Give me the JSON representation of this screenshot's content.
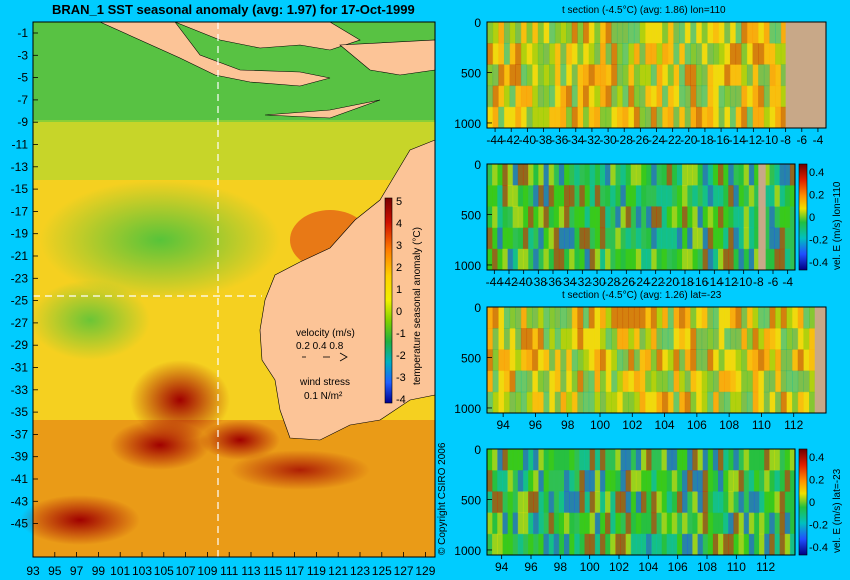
{
  "main_title": "BRAN_1  SST seasonal anomaly (avg: 1.97) for 17-Oct-1999",
  "copyright": "© Copyright CSIRO 2006",
  "colors": {
    "background": "#00ccff",
    "land": "#fcc497",
    "land_section": "#c8a888"
  },
  "map": {
    "lat_ticks": [
      "-1",
      "-3",
      "-5",
      "-7",
      "-9",
      "-11",
      "-13",
      "-15",
      "-17",
      "-19",
      "-21",
      "-23",
      "-25",
      "-27",
      "-29",
      "-31",
      "-33",
      "-35",
      "-37",
      "-39",
      "-41",
      "-43",
      "-45"
    ],
    "lon_ticks": [
      "93",
      "95",
      "97",
      "99",
      "101",
      "103",
      "105",
      "107",
      "109",
      "111",
      "113",
      "115",
      "117",
      "119",
      "121",
      "123",
      "125",
      "127",
      "129"
    ],
    "colorbar_label": "temperature seasonal anomaly (°C)",
    "colorbar_ticks": [
      "5",
      "4",
      "3",
      "2",
      "1",
      "0",
      "-1",
      "-2",
      "-3",
      "-4"
    ],
    "velocity_label": "velocity (m/s)",
    "velocity_scale": "0.2 0.4 0.8",
    "wind_label": "wind stress",
    "wind_scale": "0.1 N/m²"
  },
  "chart_data": [
    {
      "type": "heatmap",
      "title": "t section (-4.5°C) (avg: 1.86) lon=110",
      "x_ticks": [
        "-44",
        "-42",
        "-40",
        "-38",
        "-36",
        "-34",
        "-32",
        "-30",
        "-28",
        "-26",
        "-24",
        "-22",
        "-20",
        "-18",
        "-16",
        "-14",
        "-12",
        "-10",
        "-8",
        "-6",
        "-4"
      ],
      "y_ticks": [
        "0",
        "500",
        "1000"
      ],
      "xlim": [
        -45,
        -3
      ],
      "ylim": [
        1050,
        0
      ]
    },
    {
      "type": "heatmap",
      "title": "",
      "x_ticks": [
        "-44",
        "-42",
        "-40",
        "-38",
        "-36",
        "-34",
        "-32",
        "-30",
        "-28",
        "-26",
        "-24",
        "-22",
        "-20",
        "-18",
        "-16",
        "-14",
        "-12",
        "-10",
        "-8",
        "-6",
        "-4"
      ],
      "y_ticks": [
        "0",
        "500",
        "1000"
      ],
      "colorbar_label": "vel. E (m/s) lon=110",
      "colorbar_ticks": [
        "0.4",
        "0.2",
        "0",
        "-0.2",
        "-0.4"
      ],
      "xlim": [
        -45,
        -3
      ],
      "ylim": [
        1050,
        0
      ]
    },
    {
      "type": "heatmap",
      "title": "t section (-4.5°C) (avg: 1.26) lat=-23",
      "x_ticks": [
        "94",
        "96",
        "98",
        "100",
        "102",
        "104",
        "106",
        "108",
        "110",
        "112"
      ],
      "y_ticks": [
        "0",
        "500",
        "1000"
      ],
      "xlim": [
        93,
        114
      ],
      "ylim": [
        1050,
        0
      ]
    },
    {
      "type": "heatmap",
      "title": "",
      "x_ticks": [
        "94",
        "96",
        "98",
        "100",
        "102",
        "104",
        "106",
        "108",
        "110",
        "112"
      ],
      "y_ticks": [
        "0",
        "500",
        "1000"
      ],
      "colorbar_label": "vel. E (m/s) lat=-23",
      "colorbar_ticks": [
        "0.4",
        "0.2",
        "0",
        "-0.2",
        "-0.4"
      ],
      "xlim": [
        93,
        114
      ],
      "ylim": [
        1050,
        0
      ]
    }
  ]
}
